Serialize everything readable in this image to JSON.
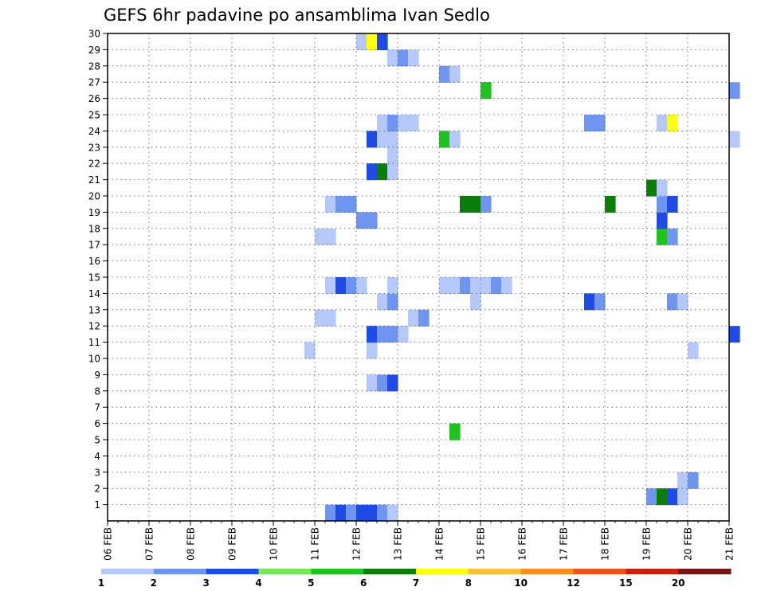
{
  "chart_data": {
    "type": "heatmap",
    "title": "GEFS 6hr padavine po ansamblima Ivan Sedlo",
    "xlabel": "",
    "ylabel": "",
    "x_ticks": [
      "06 FEB",
      "07 FEB",
      "08 FEB",
      "09 FEB",
      "10 FEB",
      "11 FEB",
      "12 FEB",
      "13 FEB",
      "14 FEB",
      "15 FEB",
      "16 FEB",
      "17 FEB",
      "18 FEB",
      "19 FEB",
      "20 FEB",
      "21 FEB"
    ],
    "x_range": [
      0,
      15
    ],
    "steps_per_day": 4,
    "y_ticks": [
      1,
      2,
      3,
      4,
      5,
      6,
      7,
      8,
      9,
      10,
      11,
      12,
      13,
      14,
      15,
      16,
      17,
      18,
      19,
      20,
      21,
      22,
      23,
      24,
      25,
      26,
      27,
      28,
      29,
      30
    ],
    "y_range": [
      0,
      30
    ],
    "grid": true,
    "legend": "bottom",
    "levels": [
      "1",
      "2",
      "3",
      "4",
      "5",
      "6",
      "7",
      "8",
      "10",
      "12",
      "15",
      "20"
    ],
    "colors": [
      "#b4c8fa",
      "#6e96f0",
      "#1e4be6",
      "#78e65a",
      "#1ec31e",
      "#0a7d0a",
      "#ffff14",
      "#ffbe3c",
      "#ff8c1e",
      "#f0501e",
      "#c81e14",
      "#781414"
    ],
    "cells": [
      {
        "x": 5.25,
        "y": 0,
        "v": 2
      },
      {
        "x": 5.5,
        "y": 0,
        "v": 3
      },
      {
        "x": 5.75,
        "y": 0,
        "v": 2
      },
      {
        "x": 6.0,
        "y": 0,
        "v": 3
      },
      {
        "x": 6.25,
        "y": 0,
        "v": 3
      },
      {
        "x": 6.5,
        "y": 0,
        "v": 2
      },
      {
        "x": 6.75,
        "y": 0,
        "v": 1
      },
      {
        "x": 13.0,
        "y": 1,
        "v": 2
      },
      {
        "x": 13.25,
        "y": 1,
        "v": 6
      },
      {
        "x": 13.5,
        "y": 1,
        "v": 3
      },
      {
        "x": 13.75,
        "y": 1,
        "v": 1
      },
      {
        "x": 13.75,
        "y": 2,
        "v": 1
      },
      {
        "x": 14.0,
        "y": 2,
        "v": 2
      },
      {
        "x": 8.25,
        "y": 5,
        "v": 5
      },
      {
        "x": 6.25,
        "y": 8,
        "v": 1
      },
      {
        "x": 6.5,
        "y": 8,
        "v": 2
      },
      {
        "x": 6.75,
        "y": 8,
        "v": 3
      },
      {
        "x": 4.75,
        "y": 10,
        "v": 1
      },
      {
        "x": 6.25,
        "y": 10,
        "v": 1
      },
      {
        "x": 14.0,
        "y": 10,
        "v": 1
      },
      {
        "x": 6.25,
        "y": 11,
        "v": 3
      },
      {
        "x": 6.5,
        "y": 11,
        "v": 2
      },
      {
        "x": 6.75,
        "y": 11,
        "v": 2
      },
      {
        "x": 7.0,
        "y": 11,
        "v": 1
      },
      {
        "x": 15.0,
        "y": 11,
        "v": 3
      },
      {
        "x": 5.0,
        "y": 12,
        "v": 1
      },
      {
        "x": 5.25,
        "y": 12,
        "v": 1
      },
      {
        "x": 7.25,
        "y": 12,
        "v": 1
      },
      {
        "x": 7.5,
        "y": 12,
        "v": 2
      },
      {
        "x": 6.5,
        "y": 13,
        "v": 1
      },
      {
        "x": 6.75,
        "y": 13,
        "v": 2
      },
      {
        "x": 8.75,
        "y": 13,
        "v": 1
      },
      {
        "x": 11.5,
        "y": 13,
        "v": 3
      },
      {
        "x": 11.75,
        "y": 13,
        "v": 2
      },
      {
        "x": 13.5,
        "y": 13,
        "v": 2
      },
      {
        "x": 13.75,
        "y": 13,
        "v": 1
      },
      {
        "x": 5.25,
        "y": 14,
        "v": 1
      },
      {
        "x": 5.5,
        "y": 14,
        "v": 3
      },
      {
        "x": 5.75,
        "y": 14,
        "v": 2
      },
      {
        "x": 6.0,
        "y": 14,
        "v": 1
      },
      {
        "x": 6.75,
        "y": 14,
        "v": 1
      },
      {
        "x": 8.0,
        "y": 14,
        "v": 1
      },
      {
        "x": 8.25,
        "y": 14,
        "v": 1
      },
      {
        "x": 8.5,
        "y": 14,
        "v": 2
      },
      {
        "x": 8.75,
        "y": 14,
        "v": 1
      },
      {
        "x": 9.0,
        "y": 14,
        "v": 1
      },
      {
        "x": 9.25,
        "y": 14,
        "v": 2
      },
      {
        "x": 9.5,
        "y": 14,
        "v": 1
      },
      {
        "x": 5.0,
        "y": 17,
        "v": 1
      },
      {
        "x": 5.25,
        "y": 17,
        "v": 1
      },
      {
        "x": 13.25,
        "y": 17,
        "v": 5
      },
      {
        "x": 13.5,
        "y": 17,
        "v": 2
      },
      {
        "x": 6.0,
        "y": 18,
        "v": 2
      },
      {
        "x": 6.25,
        "y": 18,
        "v": 2
      },
      {
        "x": 13.25,
        "y": 18,
        "v": 3
      },
      {
        "x": 5.25,
        "y": 19,
        "v": 1
      },
      {
        "x": 5.5,
        "y": 19,
        "v": 2
      },
      {
        "x": 5.75,
        "y": 19,
        "v": 2
      },
      {
        "x": 8.5,
        "y": 19,
        "v": 6
      },
      {
        "x": 8.75,
        "y": 19,
        "v": 6
      },
      {
        "x": 9.0,
        "y": 19,
        "v": 2
      },
      {
        "x": 12.0,
        "y": 19,
        "v": 6
      },
      {
        "x": 13.25,
        "y": 19,
        "v": 2
      },
      {
        "x": 13.5,
        "y": 19,
        "v": 3
      },
      {
        "x": 13.0,
        "y": 20,
        "v": 6
      },
      {
        "x": 13.25,
        "y": 20,
        "v": 1
      },
      {
        "x": 6.25,
        "y": 21,
        "v": 3
      },
      {
        "x": 6.5,
        "y": 21,
        "v": 6
      },
      {
        "x": 6.75,
        "y": 21,
        "v": 1
      },
      {
        "x": 6.75,
        "y": 22,
        "v": 1
      },
      {
        "x": 6.25,
        "y": 23,
        "v": 3
      },
      {
        "x": 6.5,
        "y": 23,
        "v": 1
      },
      {
        "x": 6.75,
        "y": 23,
        "v": 1
      },
      {
        "x": 8.0,
        "y": 23,
        "v": 5
      },
      {
        "x": 8.25,
        "y": 23,
        "v": 1
      },
      {
        "x": 15.0,
        "y": 23,
        "v": 1
      },
      {
        "x": 6.5,
        "y": 24,
        "v": 1
      },
      {
        "x": 6.75,
        "y": 24,
        "v": 2
      },
      {
        "x": 7.0,
        "y": 24,
        "v": 1
      },
      {
        "x": 7.25,
        "y": 24,
        "v": 1
      },
      {
        "x": 11.5,
        "y": 24,
        "v": 2
      },
      {
        "x": 11.75,
        "y": 24,
        "v": 2
      },
      {
        "x": 13.25,
        "y": 24,
        "v": 1
      },
      {
        "x": 13.5,
        "y": 24,
        "v": 7
      },
      {
        "x": 9.0,
        "y": 26,
        "v": 5
      },
      {
        "x": 15.0,
        "y": 26,
        "v": 2
      },
      {
        "x": 8.0,
        "y": 27,
        "v": 2
      },
      {
        "x": 8.25,
        "y": 27,
        "v": 1
      },
      {
        "x": 6.75,
        "y": 28,
        "v": 1
      },
      {
        "x": 7.0,
        "y": 28,
        "v": 2
      },
      {
        "x": 7.25,
        "y": 28,
        "v": 1
      },
      {
        "x": 6.0,
        "y": 29,
        "v": 1
      },
      {
        "x": 6.25,
        "y": 29,
        "v": 7
      },
      {
        "x": 6.5,
        "y": 29,
        "v": 3
      }
    ]
  }
}
